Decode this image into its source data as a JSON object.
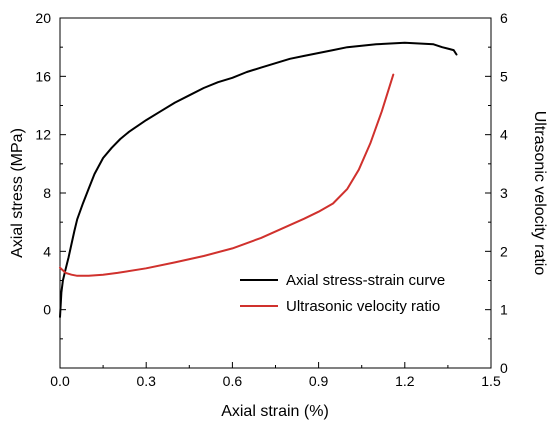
{
  "chart_data": {
    "type": "line",
    "xlabel": "Axial strain (%)",
    "ylabel_left": "Axial stress (MPa)",
    "ylabel_right": "Ultrasonic velocity ratio",
    "xlim": [
      0.0,
      1.5
    ],
    "ylim_left": [
      -4,
      20
    ],
    "ylim_right": [
      0,
      6
    ],
    "x_ticks": [
      "0.0",
      "0.3",
      "0.6",
      "0.9",
      "1.2",
      "1.5"
    ],
    "x_tick_values": [
      0.0,
      0.3,
      0.6,
      0.9,
      1.2,
      1.5
    ],
    "y_left_ticks": [
      "0",
      "4",
      "8",
      "12",
      "16",
      "20"
    ],
    "y_left_tick_values": [
      0,
      4,
      8,
      12,
      16,
      20
    ],
    "y_right_ticks": [
      "0",
      "1",
      "2",
      "3",
      "4",
      "5",
      "6"
    ],
    "y_right_tick_values": [
      0,
      1,
      2,
      3,
      4,
      5,
      6
    ],
    "grid": false,
    "legend_position": "bottom-right",
    "series": [
      {
        "name": "Axial stress-strain curve",
        "axis": "left",
        "color": "#000000",
        "x": [
          0.0,
          0.005,
          0.01,
          0.02,
          0.03,
          0.04,
          0.05,
          0.06,
          0.08,
          0.1,
          0.12,
          0.15,
          0.18,
          0.21,
          0.24,
          0.27,
          0.3,
          0.35,
          0.4,
          0.45,
          0.5,
          0.55,
          0.6,
          0.65,
          0.7,
          0.75,
          0.8,
          0.85,
          0.9,
          0.95,
          1.0,
          1.05,
          1.1,
          1.15,
          1.2,
          1.25,
          1.3,
          1.33,
          1.35,
          1.37,
          1.38
        ],
        "y": [
          -0.5,
          1.2,
          2.0,
          2.8,
          3.6,
          4.5,
          5.4,
          6.2,
          7.3,
          8.3,
          9.3,
          10.4,
          11.1,
          11.7,
          12.2,
          12.6,
          13.0,
          13.6,
          14.2,
          14.7,
          15.2,
          15.6,
          15.9,
          16.3,
          16.6,
          16.9,
          17.2,
          17.4,
          17.6,
          17.8,
          18.0,
          18.1,
          18.2,
          18.25,
          18.3,
          18.25,
          18.2,
          18.0,
          17.9,
          17.8,
          17.5
        ]
      },
      {
        "name": "Ultrasonic velocity ratio",
        "axis": "right",
        "color": "#d0312d",
        "x": [
          0.0,
          0.02,
          0.04,
          0.06,
          0.08,
          0.1,
          0.15,
          0.2,
          0.3,
          0.4,
          0.5,
          0.6,
          0.7,
          0.8,
          0.85,
          0.9,
          0.95,
          1.0,
          1.04,
          1.08,
          1.12,
          1.16
        ],
        "y": [
          1.72,
          1.63,
          1.6,
          1.58,
          1.58,
          1.58,
          1.6,
          1.63,
          1.71,
          1.81,
          1.92,
          2.05,
          2.23,
          2.45,
          2.56,
          2.68,
          2.82,
          3.07,
          3.4,
          3.85,
          4.4,
          5.03
        ]
      }
    ]
  }
}
